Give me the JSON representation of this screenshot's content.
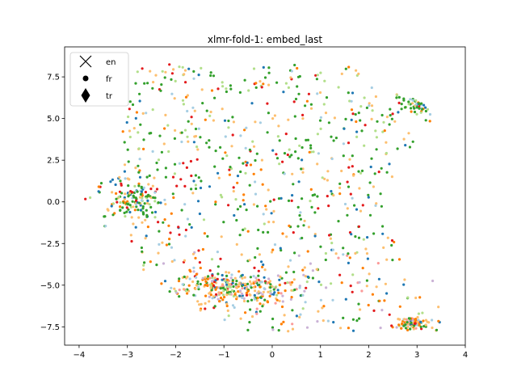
{
  "chart_data": {
    "type": "scatter",
    "title": "xlmr-fold-1: embed_last",
    "xlabel": "",
    "ylabel": "",
    "xlim": [
      -4.3,
      4.0
    ],
    "ylim": [
      -8.6,
      9.3
    ],
    "xticks": [
      -4,
      -3,
      -2,
      -1,
      0,
      1,
      2,
      3,
      4
    ],
    "xtick_labels": [
      "−4",
      "−3",
      "−2",
      "−1",
      "0",
      "1",
      "2",
      "3",
      "4"
    ],
    "yticks": [
      -7.5,
      -5.0,
      -2.5,
      0.0,
      2.5,
      5.0,
      7.5
    ],
    "ytick_labels": [
      "−7.5",
      "−5.0",
      "−2.5",
      "0.0",
      "2.5",
      "5.0",
      "7.5"
    ],
    "grid": false,
    "legend_position": "top-left",
    "legend": [
      {
        "label": "en",
        "marker": "x"
      },
      {
        "label": "fr",
        "marker": "circle"
      },
      {
        "label": "tr",
        "marker": "diamond"
      }
    ],
    "colors": {
      "dark_green": "#33a02c",
      "light_green": "#b2df8a",
      "light_orange": "#fdbf6f",
      "orange": "#ff7f00",
      "blue": "#1f78b4",
      "light_blue": "#a6cee3",
      "red": "#e31a1c",
      "light_red": "#fb9a99",
      "light_purple": "#cab2d6"
    },
    "points_note_free": true,
    "point_count": 1400
  }
}
